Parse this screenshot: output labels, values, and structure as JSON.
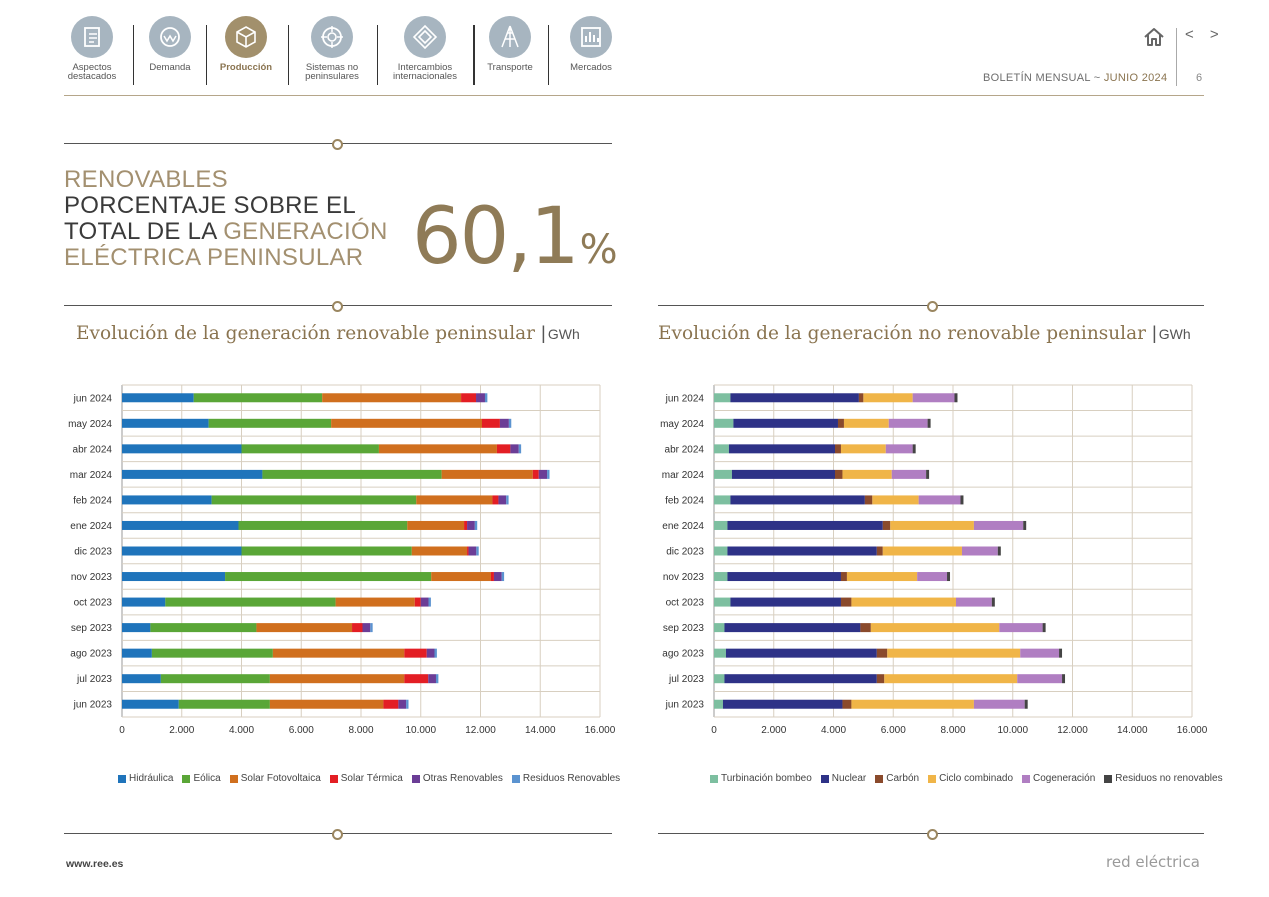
{
  "nav": [
    {
      "label1": "Aspectos",
      "label2": "destacados",
      "icon": "document-icon",
      "active": false
    },
    {
      "label1": "Demanda",
      "label2": "",
      "icon": "demand-meter-icon",
      "active": false
    },
    {
      "label1": "Producción",
      "label2": "",
      "icon": "cube-icon",
      "active": true
    },
    {
      "label1": "Sistemas no",
      "label2": "peninsulares",
      "icon": "target-icon",
      "active": false
    },
    {
      "label1": "Intercambios",
      "label2": "internacionales",
      "icon": "exchange-icon",
      "active": false
    },
    {
      "label1": "Transporte",
      "label2": "",
      "icon": "tower-icon",
      "active": false
    },
    {
      "label1": "Mercados",
      "label2": "",
      "icon": "market-chart-icon",
      "active": false
    }
  ],
  "header": {
    "bulletin": "BOLETÍN MENSUAL",
    "sep": "~",
    "month": "JUNIO 2024",
    "page": "6",
    "nav_arrows": "< >"
  },
  "headline": {
    "line1": "RENOVABLES",
    "line2": "PORCENTAJE SOBRE EL",
    "line3a": "TOTAL DE LA ",
    "line3b": "GENERACIÓN",
    "line4": "ELÉCTRICA PENINSULAR",
    "value": "60,1",
    "unit": "%"
  },
  "footer": {
    "url": "www.ree.es",
    "logo": "red eléctrica"
  },
  "chart_data": [
    {
      "type": "bar",
      "orientation": "horizontal",
      "stacked": true,
      "title": "Evolución de la generación renovable peninsular",
      "unit": "GWh",
      "categories": [
        "jun 2024",
        "may 2024",
        "abr 2024",
        "mar 2024",
        "feb 2024",
        "ene 2024",
        "dic 2023",
        "nov 2023",
        "oct 2023",
        "sep 2023",
        "ago 2023",
        "jul 2023",
        "jun 2023"
      ],
      "xlim": [
        0,
        16000
      ],
      "ticks": [
        "0",
        "2.000",
        "4.000",
        "6.000",
        "8.000",
        "10.000",
        "12.000",
        "14.000",
        "16.000"
      ],
      "grid": true,
      "legend_position": "bottom",
      "series": [
        {
          "name": "Hidráulica",
          "color": "#1f74bb",
          "values": [
            2400,
            2900,
            4000,
            4700,
            3000,
            3900,
            4000,
            3450,
            1450,
            950,
            1000,
            1300,
            1900
          ]
        },
        {
          "name": "Eólica",
          "color": "#5aa637",
          "values": [
            4300,
            4100,
            4600,
            6000,
            6850,
            5650,
            5700,
            6900,
            5700,
            3550,
            4050,
            3650,
            3050
          ]
        },
        {
          "name": "Solar Fotovoltaica",
          "color": "#d06f1e",
          "values": [
            4650,
            5050,
            3950,
            3050,
            2550,
            1900,
            1850,
            2000,
            2650,
            3200,
            4400,
            4500,
            3800
          ]
        },
        {
          "name": "Solar Térmica",
          "color": "#e31e24",
          "values": [
            500,
            600,
            450,
            200,
            200,
            100,
            50,
            100,
            200,
            350,
            750,
            800,
            500
          ]
        },
        {
          "name": "Otras Renovables",
          "color": "#6b3d96",
          "values": [
            300,
            300,
            280,
            280,
            260,
            260,
            260,
            260,
            260,
            260,
            260,
            260,
            260
          ]
        },
        {
          "name": "Residuos Renovables",
          "color": "#5b93d0",
          "values": [
            80,
            80,
            80,
            80,
            80,
            80,
            80,
            80,
            80,
            80,
            80,
            80,
            80
          ]
        }
      ]
    },
    {
      "type": "bar",
      "orientation": "horizontal",
      "stacked": true,
      "title": "Evolución de la generación no renovable peninsular",
      "unit": "GWh",
      "categories": [
        "jun 2024",
        "may 2024",
        "abr 2024",
        "mar 2024",
        "feb 2024",
        "ene 2024",
        "dic 2023",
        "nov 2023",
        "oct 2023",
        "sep 2023",
        "ago 2023",
        "jul 2023",
        "jun 2023"
      ],
      "xlim": [
        0,
        16000
      ],
      "ticks": [
        "0",
        "2.000",
        "4.000",
        "6.000",
        "8.000",
        "10.000",
        "12.000",
        "14.000",
        "16.000"
      ],
      "grid": true,
      "legend_position": "bottom",
      "series": [
        {
          "name": "Turbinación bombeo",
          "color": "#7dbfa0",
          "values": [
            550,
            650,
            500,
            600,
            550,
            450,
            450,
            450,
            550,
            350,
            400,
            350,
            300
          ]
        },
        {
          "name": "Nuclear",
          "color": "#2e3287",
          "values": [
            4300,
            3500,
            3550,
            3450,
            4500,
            5200,
            5000,
            3800,
            3700,
            4550,
            5050,
            5100,
            4000
          ]
        },
        {
          "name": "Carbón",
          "color": "#8a4a2c",
          "values": [
            150,
            200,
            200,
            250,
            250,
            250,
            200,
            200,
            350,
            350,
            350,
            250,
            300
          ]
        },
        {
          "name": "Ciclo combinado",
          "color": "#f0b548",
          "values": [
            1650,
            1500,
            1500,
            1650,
            1550,
            2800,
            2650,
            2350,
            3500,
            4300,
            4450,
            4450,
            4100
          ]
        },
        {
          "name": "Cogeneración",
          "color": "#b07ec2",
          "values": [
            1400,
            1300,
            900,
            1150,
            1400,
            1650,
            1200,
            1000,
            1200,
            1450,
            1300,
            1500,
            1700
          ]
        },
        {
          "name": "Residuos no renovables",
          "color": "#444444",
          "values": [
            100,
            100,
            100,
            100,
            100,
            100,
            100,
            100,
            100,
            100,
            100,
            100,
            100
          ]
        }
      ]
    }
  ]
}
